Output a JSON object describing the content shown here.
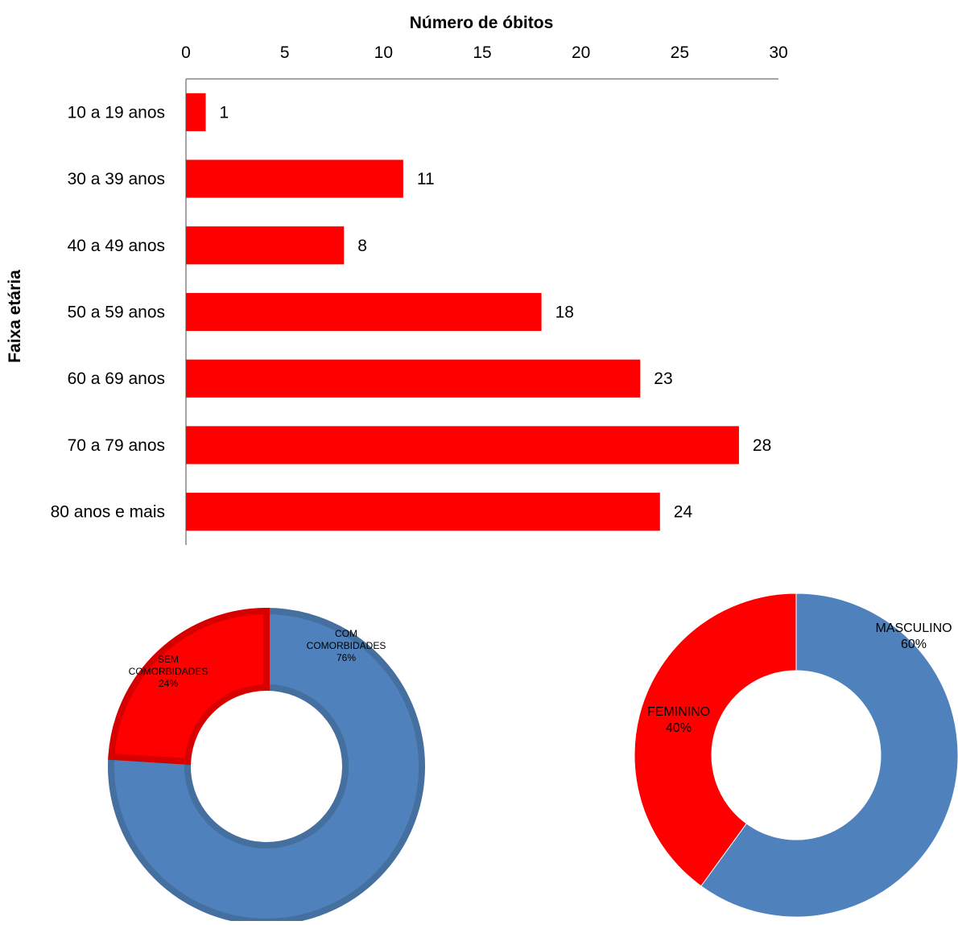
{
  "colors": {
    "red": "#ff0000",
    "blue": "#4f81bd",
    "blue_border": "#446f9f",
    "red_border": "#d60000",
    "axis": "#868686",
    "text": "#000000"
  },
  "chart_data": [
    {
      "type": "bar",
      "orientation": "horizontal",
      "xlabel": "Número de óbitos",
      "ylabel": "Faixa etária",
      "x_axis_position": "top",
      "xlim": [
        0,
        30
      ],
      "xticks": [
        "0",
        "5",
        "10",
        "15",
        "20",
        "25",
        "30"
      ],
      "grid": false,
      "categories": [
        "10 a 19 anos",
        "30 a 39 anos",
        "40 a 49 anos",
        "50 a 59 anos",
        "60 a 69 anos",
        "70 a 79 anos",
        "80 anos e mais"
      ],
      "values": [
        1,
        11,
        8,
        18,
        23,
        28,
        24
      ],
      "data_labels": [
        "1",
        "11",
        "8",
        "18",
        "23",
        "28",
        "24"
      ],
      "color": "#ff0000"
    },
    {
      "type": "pie",
      "style": "donut",
      "slices": [
        {
          "label": "COM COMORBIDADES",
          "label_lines": [
            "COM",
            "COMORBIDADES"
          ],
          "value": 76,
          "percent_label": "76%",
          "color": "#4f81bd"
        },
        {
          "label": "SEM COMORBIDADES",
          "label_lines": [
            "SEM",
            "COMORBIDADES"
          ],
          "value": 24,
          "percent_label": "24%",
          "color": "#ff0000"
        }
      ]
    },
    {
      "type": "pie",
      "style": "donut",
      "slices": [
        {
          "label": "MASCULINO",
          "label_lines": [
            "MASCULINO"
          ],
          "value": 60,
          "percent_label": "60%",
          "color": "#4f81bd"
        },
        {
          "label": "FEMININO",
          "label_lines": [
            "FEMININO"
          ],
          "value": 40,
          "percent_label": "40%",
          "color": "#ff0000"
        }
      ]
    }
  ]
}
